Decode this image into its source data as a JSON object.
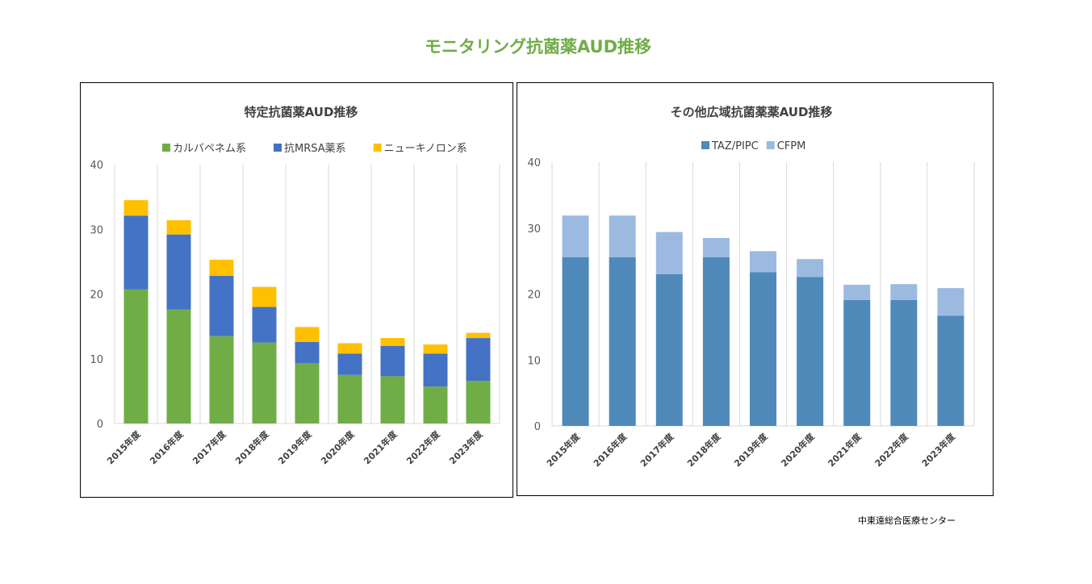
{
  "title": "モニタリング抗菌薬AUD推移",
  "footer": "中東遠総合医療センター",
  "chart_data": [
    {
      "type": "bar",
      "stacked": true,
      "title": "特定抗菌薬AUD推移",
      "categories": [
        "2015年度",
        "2016年度",
        "2017年度",
        "2018年度",
        "2019年度",
        "2020年度",
        "2021年度",
        "2022年度",
        "2023年度"
      ],
      "series": [
        {
          "name": "カルバペネム系",
          "color": "#70AD47",
          "values": [
            20.7,
            17.6,
            13.5,
            12.5,
            9.3,
            7.5,
            7.3,
            5.7,
            6.6
          ]
        },
        {
          "name": "抗MRSA薬系",
          "color": "#4472C4",
          "values": [
            11.4,
            11.6,
            9.3,
            5.5,
            3.3,
            3.3,
            4.7,
            5.1,
            6.6
          ]
        },
        {
          "name": "ニューキノロン系",
          "color": "#FFC000",
          "values": [
            2.4,
            2.2,
            2.5,
            3.1,
            2.3,
            1.6,
            1.2,
            1.4,
            0.8
          ]
        }
      ],
      "ylim": [
        0,
        40
      ],
      "yticks": [
        0,
        10,
        20,
        30,
        40
      ],
      "legend_position": "top",
      "grid": "vertical"
    },
    {
      "type": "bar",
      "stacked": true,
      "title": "その他広域抗菌薬薬AUD推移",
      "categories": [
        "2015年度",
        "2016年度",
        "2017年度",
        "2018年度",
        "2019年度",
        "2020年度",
        "2021年度",
        "2022年度",
        "2023年度"
      ],
      "series": [
        {
          "name": "TAZ/PIPC",
          "color": "#4E89BA",
          "values": [
            25.6,
            25.6,
            23.0,
            25.6,
            23.3,
            22.6,
            19.1,
            19.1,
            16.7
          ]
        },
        {
          "name": "CFPM",
          "color": "#9CBADF",
          "values": [
            6.3,
            6.3,
            6.4,
            2.9,
            3.2,
            2.7,
            2.3,
            2.4,
            4.2
          ]
        }
      ],
      "ylim": [
        0,
        40
      ],
      "yticks": [
        0,
        10,
        20,
        30,
        40
      ],
      "legend_position": "top",
      "grid": "vertical"
    }
  ]
}
